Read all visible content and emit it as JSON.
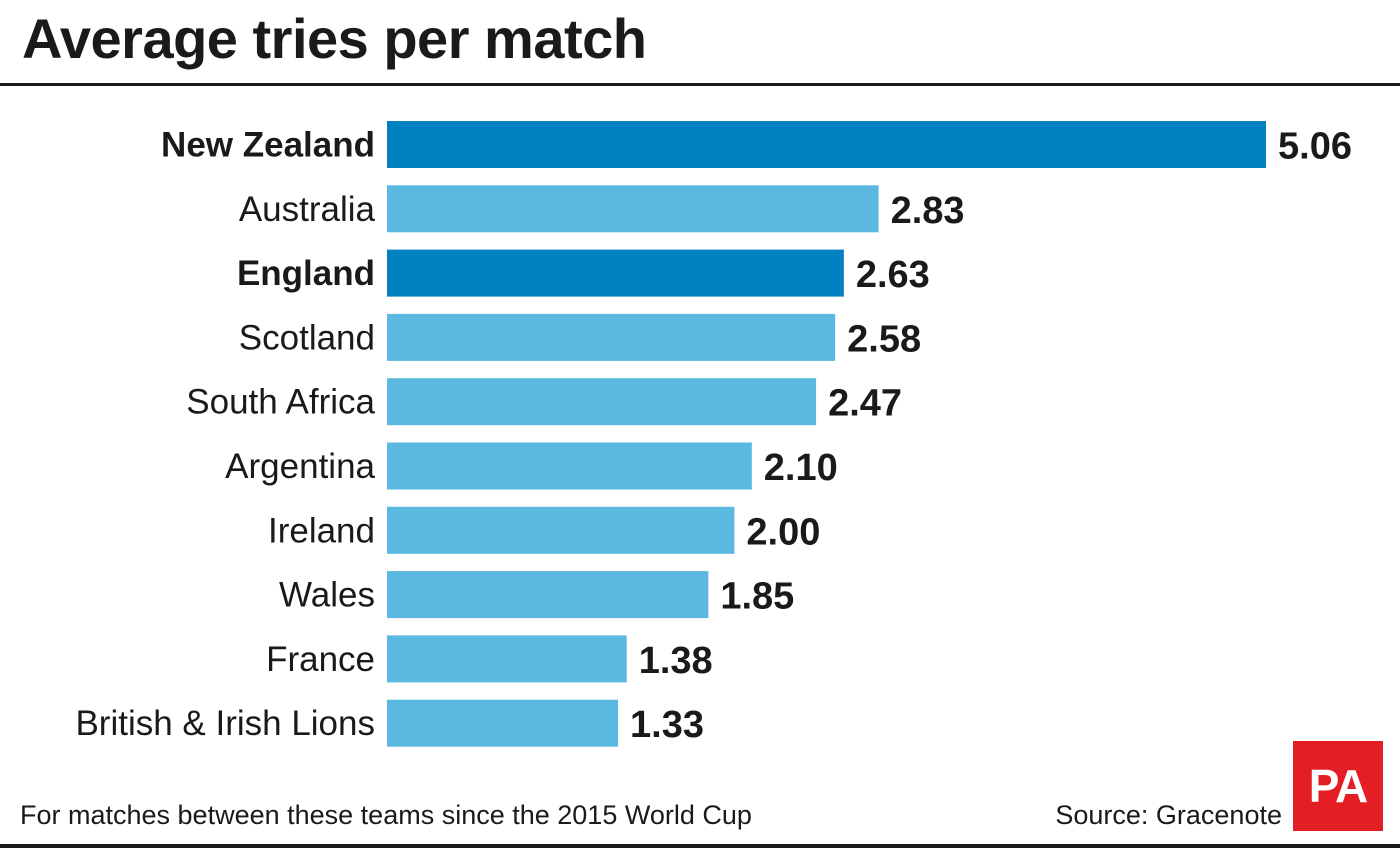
{
  "title": "Average tries per match",
  "footnote": "For matches between these teams since the 2015 World Cup",
  "source": "Source: Gracenote",
  "logo_text": "PA",
  "colors": {
    "highlight": "#0181c0",
    "normal": "#5bb8e0",
    "text": "#1a1a1a",
    "logo": "#e31e24"
  },
  "chart_data": {
    "type": "bar",
    "orientation": "horizontal",
    "categories": [
      "New Zealand",
      "Australia",
      "England",
      "Scotland",
      "South Africa",
      "Argentina",
      "Ireland",
      "Wales",
      "France",
      "British & Irish Lions"
    ],
    "values": [
      5.06,
      2.83,
      2.63,
      2.58,
      2.47,
      2.1,
      2.0,
      1.85,
      1.38,
      1.33
    ],
    "value_labels": [
      "5.06",
      "2.83",
      "2.63",
      "2.58",
      "2.47",
      "2.10",
      "2.00",
      "1.85",
      "1.38",
      "1.33"
    ],
    "highlighted": [
      "New Zealand",
      "England"
    ],
    "title": "Average tries per match",
    "xlabel": "",
    "ylabel": "",
    "xlim": [
      0,
      5.06
    ],
    "grid": false,
    "legend": "none"
  }
}
